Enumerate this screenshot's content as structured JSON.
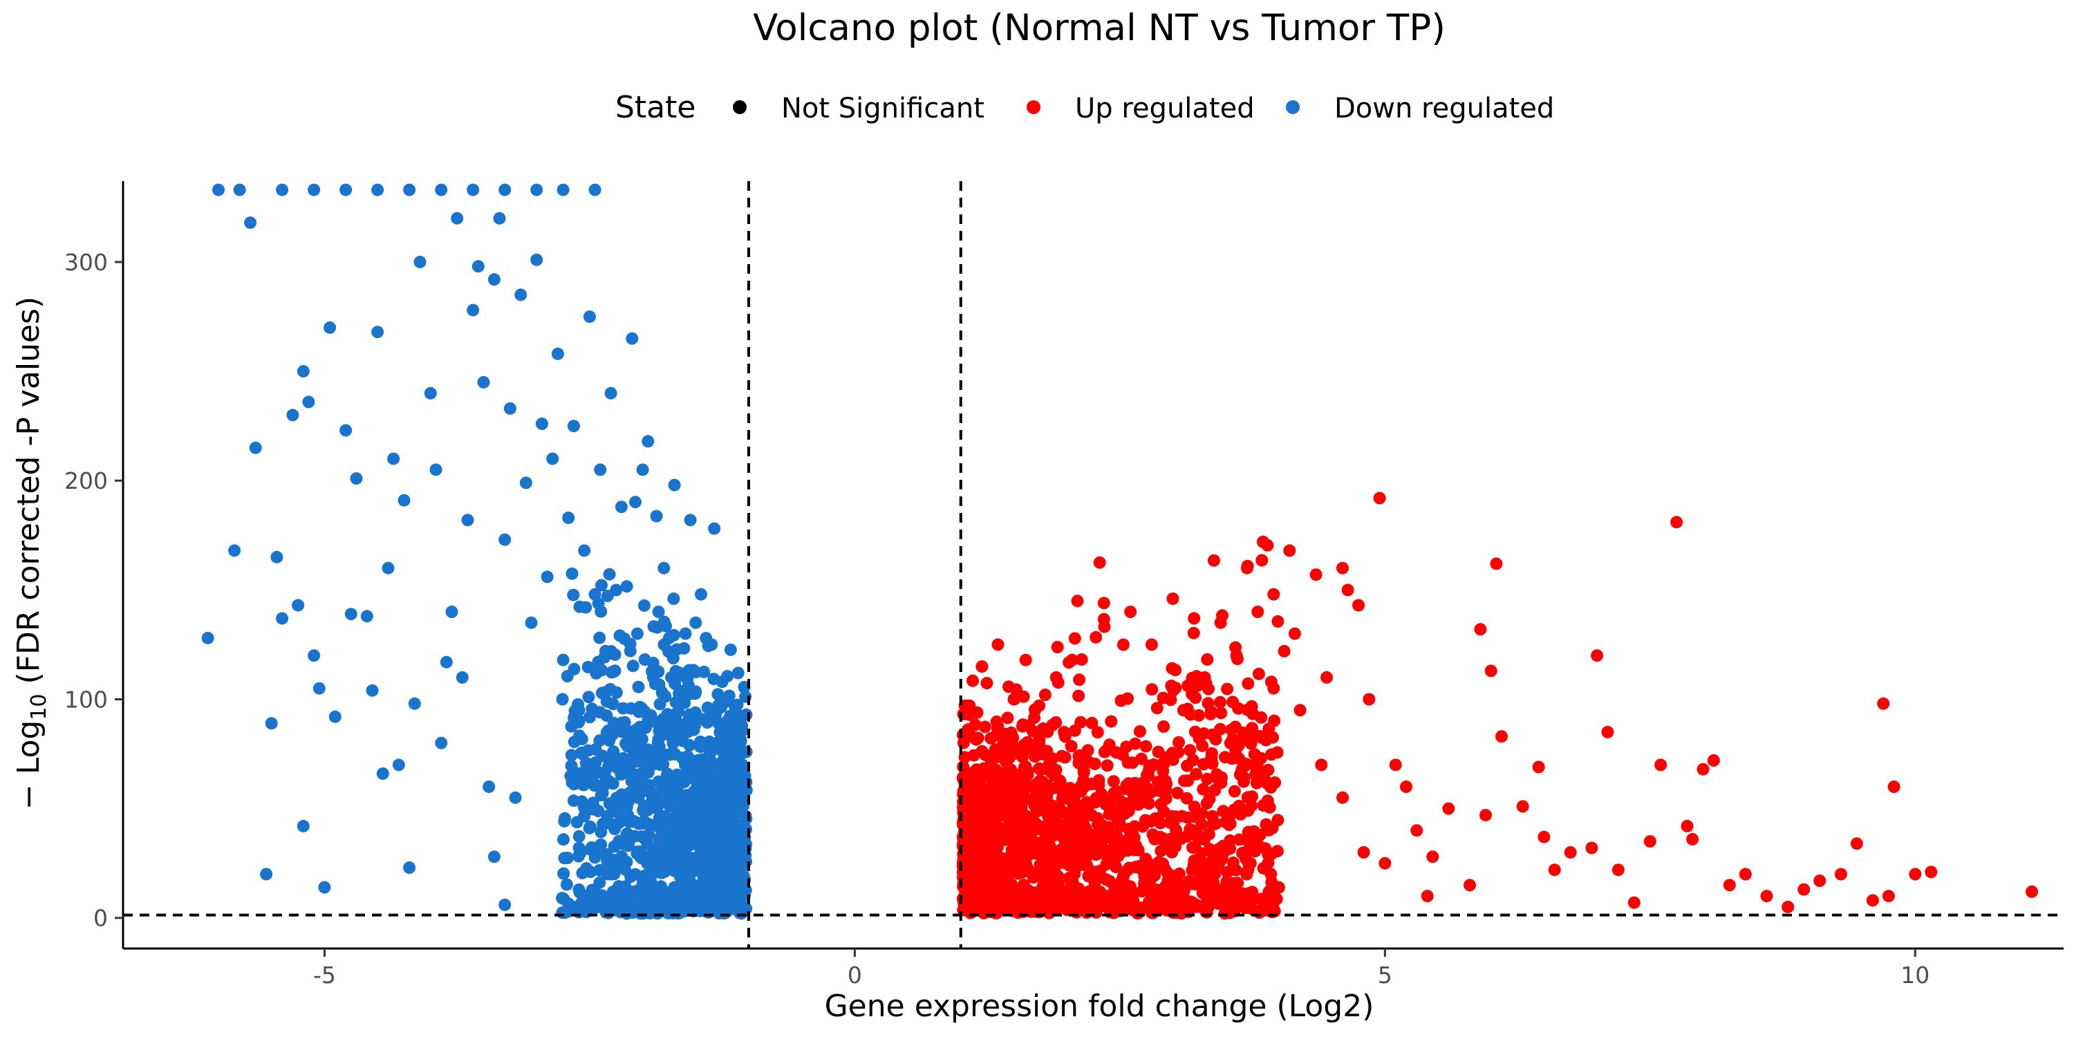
{
  "chart_data": {
    "type": "scatter",
    "title": "Volcano plot (Normal NT vs Tumor TP)",
    "xlabel": "Gene expression fold change (Log2)",
    "ylabel_prefix": "− Log",
    "ylabel_sub": "10",
    "ylabel_suffix": " (FDR corrected -P values)",
    "xlim": [
      -6.9,
      11.4
    ],
    "ylim": [
      -14,
      337
    ],
    "x_ticks": [
      -5,
      0,
      5,
      10
    ],
    "x_tick_labels": [
      "-5",
      "0",
      "5",
      "10"
    ],
    "y_ticks": [
      0,
      100,
      200,
      300
    ],
    "y_tick_labels": [
      "0",
      "100",
      "200",
      "300"
    ],
    "thresholds": {
      "x": [
        -1,
        1
      ],
      "y": [
        1.3
      ]
    },
    "grid": false,
    "legend": {
      "title": "State",
      "position": "top",
      "items": [
        {
          "label": "Not Significant",
          "color": "#000000"
        },
        {
          "label": "Up regulated",
          "color": "#FF0000"
        },
        {
          "label": "Down regulated",
          "color": "#1874CD"
        }
      ]
    },
    "series": [
      {
        "name": "Down regulated",
        "color": "#1874CD",
        "points": [
          [
            -6.1,
            128
          ],
          [
            -5.85,
            168
          ],
          [
            -5.7,
            318
          ],
          [
            -5.65,
            215
          ],
          [
            -5.5,
            89
          ],
          [
            -5.45,
            165
          ],
          [
            -5.4,
            137
          ],
          [
            -5.3,
            230
          ],
          [
            -5.25,
            143
          ],
          [
            -5.2,
            250
          ],
          [
            -5.15,
            236
          ],
          [
            -5.1,
            120
          ],
          [
            -5.05,
            105
          ],
          [
            -4.95,
            270
          ],
          [
            -4.9,
            92
          ],
          [
            -4.8,
            223
          ],
          [
            -4.75,
            139
          ],
          [
            -4.7,
            201
          ],
          [
            -4.6,
            138
          ],
          [
            -4.55,
            104
          ],
          [
            -4.5,
            268
          ],
          [
            -4.45,
            66
          ],
          [
            -4.4,
            160
          ],
          [
            -4.35,
            210
          ],
          [
            -4.3,
            70
          ],
          [
            -4.25,
            191
          ],
          [
            -4.2,
            23
          ],
          [
            -4.15,
            98
          ],
          [
            -4.1,
            300
          ],
          [
            -4.0,
            240
          ],
          [
            -3.95,
            205
          ],
          [
            -3.9,
            80
          ],
          [
            -3.85,
            117
          ],
          [
            -3.8,
            140
          ],
          [
            -3.75,
            320
          ],
          [
            -3.7,
            110
          ],
          [
            -3.65,
            182
          ],
          [
            -3.6,
            278
          ],
          [
            -3.55,
            298
          ],
          [
            -3.5,
            245
          ],
          [
            -3.45,
            60
          ],
          [
            -3.4,
            292
          ],
          [
            -3.35,
            320
          ],
          [
            -3.3,
            173
          ],
          [
            -3.25,
            233
          ],
          [
            -3.2,
            55
          ],
          [
            -3.15,
            285
          ],
          [
            -3.1,
            199
          ],
          [
            -3.05,
            135
          ],
          [
            -3.0,
            301
          ],
          [
            -2.95,
            226
          ],
          [
            -2.9,
            156
          ],
          [
            -2.85,
            210
          ],
          [
            -2.8,
            258
          ],
          [
            -2.75,
            118
          ],
          [
            -2.7,
            183
          ],
          [
            -2.65,
            225
          ],
          [
            -2.6,
            95
          ],
          [
            -2.55,
            168
          ],
          [
            -2.5,
            275
          ],
          [
            -2.45,
            148
          ],
          [
            -2.4,
            205
          ],
          [
            -2.35,
            122
          ],
          [
            -2.3,
            240
          ],
          [
            -2.25,
            150
          ],
          [
            -2.2,
            188
          ],
          [
            -2.15,
            2
          ],
          [
            -2.1,
            265
          ],
          [
            -2.05,
            130
          ],
          [
            -2.0,
            205
          ],
          [
            -1.95,
            218
          ],
          [
            -1.9,
            110
          ],
          [
            -1.85,
            140
          ],
          [
            -1.8,
            160
          ],
          [
            -1.75,
            128
          ],
          [
            -1.7,
            198
          ],
          [
            -1.65,
            112
          ],
          [
            -1.6,
            70
          ],
          [
            -1.55,
            182
          ],
          [
            -1.5,
            135
          ],
          [
            -1.45,
            148
          ],
          [
            -1.4,
            72
          ],
          [
            -1.35,
            125
          ],
          [
            -1.3,
            95
          ],
          [
            -1.25,
            108
          ],
          [
            -1.2,
            60
          ],
          [
            -1.15,
            42
          ],
          [
            -1.1,
            112
          ],
          [
            -1.05,
            58
          ],
          [
            -6.0,
            333
          ],
          [
            -5.8,
            333
          ],
          [
            -5.4,
            333
          ],
          [
            -5.1,
            333
          ],
          [
            -4.8,
            333
          ],
          [
            -4.5,
            333
          ],
          [
            -4.2,
            333
          ],
          [
            -3.9,
            333
          ],
          [
            -3.6,
            333
          ],
          [
            -3.3,
            333
          ],
          [
            -3.0,
            333
          ],
          [
            -2.75,
            333
          ],
          [
            -2.45,
            333
          ],
          [
            -5.55,
            20
          ],
          [
            -5.2,
            42
          ],
          [
            -5.0,
            14
          ],
          [
            -3.4,
            28
          ],
          [
            -3.3,
            6
          ],
          [
            -2.6,
            32
          ],
          [
            -2.3,
            20
          ],
          [
            -1.9,
            30
          ],
          [
            -1.7,
            14
          ],
          [
            -1.5,
            6
          ],
          [
            -1.3,
            20
          ],
          [
            -1.2,
            10
          ]
        ],
        "cluster": {
          "x_range": [
            -2.8,
            -1.02
          ],
          "y_center": 40,
          "y_spread": 40,
          "count": 1250,
          "note": "dense mass of overlapping points"
        }
      },
      {
        "name": "Up regulated",
        "color": "#FF0000",
        "points": [
          [
            1.2,
            115
          ],
          [
            1.35,
            125
          ],
          [
            1.5,
            100
          ],
          [
            1.7,
            95
          ],
          [
            1.9,
            110
          ],
          [
            2.05,
            118
          ],
          [
            2.1,
            145
          ],
          [
            2.35,
            144
          ],
          [
            2.6,
            140
          ],
          [
            2.8,
            125
          ],
          [
            3.0,
            146
          ],
          [
            3.2,
            137
          ],
          [
            3.45,
            135
          ],
          [
            3.7,
            160
          ],
          [
            3.8,
            140
          ],
          [
            3.85,
            172
          ],
          [
            3.95,
            148
          ],
          [
            4.05,
            122
          ],
          [
            4.1,
            168
          ],
          [
            4.15,
            130
          ],
          [
            4.35,
            157
          ],
          [
            4.6,
            160
          ],
          [
            4.65,
            150
          ],
          [
            4.75,
            143
          ],
          [
            4.85,
            100
          ],
          [
            4.95,
            192
          ],
          [
            5.1,
            70
          ],
          [
            5.3,
            40
          ],
          [
            5.45,
            28
          ],
          [
            5.6,
            50
          ],
          [
            5.8,
            15
          ],
          [
            5.9,
            132
          ],
          [
            5.95,
            47
          ],
          [
            6.0,
            113
          ],
          [
            6.05,
            162
          ],
          [
            6.1,
            83
          ],
          [
            6.3,
            51
          ],
          [
            6.45,
            69
          ],
          [
            6.5,
            37
          ],
          [
            6.6,
            22
          ],
          [
            6.75,
            30
          ],
          [
            6.95,
            32
          ],
          [
            7.0,
            120
          ],
          [
            7.1,
            85
          ],
          [
            7.2,
            22
          ],
          [
            7.35,
            7
          ],
          [
            7.5,
            35
          ],
          [
            7.6,
            70
          ],
          [
            7.75,
            181
          ],
          [
            7.85,
            42
          ],
          [
            7.9,
            36
          ],
          [
            8.0,
            68
          ],
          [
            8.1,
            72
          ],
          [
            8.25,
            15
          ],
          [
            8.4,
            20
          ],
          [
            8.6,
            10
          ],
          [
            8.8,
            5
          ],
          [
            8.95,
            13
          ],
          [
            9.1,
            17
          ],
          [
            9.3,
            20
          ],
          [
            9.45,
            34
          ],
          [
            9.6,
            8
          ],
          [
            9.75,
            10
          ],
          [
            9.7,
            98
          ],
          [
            9.8,
            60
          ],
          [
            10.0,
            20
          ],
          [
            10.15,
            21
          ],
          [
            11.1,
            12
          ],
          [
            4.4,
            70
          ],
          [
            4.6,
            55
          ],
          [
            4.8,
            30
          ],
          [
            5.0,
            25
          ],
          [
            5.2,
            60
          ],
          [
            5.4,
            10
          ],
          [
            4.2,
            95
          ],
          [
            4.45,
            110
          ],
          [
            3.95,
            105
          ],
          [
            3.6,
            120
          ],
          [
            3.3,
            110
          ],
          [
            3.1,
            95
          ]
        ],
        "cluster": {
          "x_range": [
            1.02,
            4.0
          ],
          "y_center": 35,
          "y_spread": 35,
          "count": 1500,
          "note": "dense mass of overlapping points"
        }
      }
    ]
  }
}
